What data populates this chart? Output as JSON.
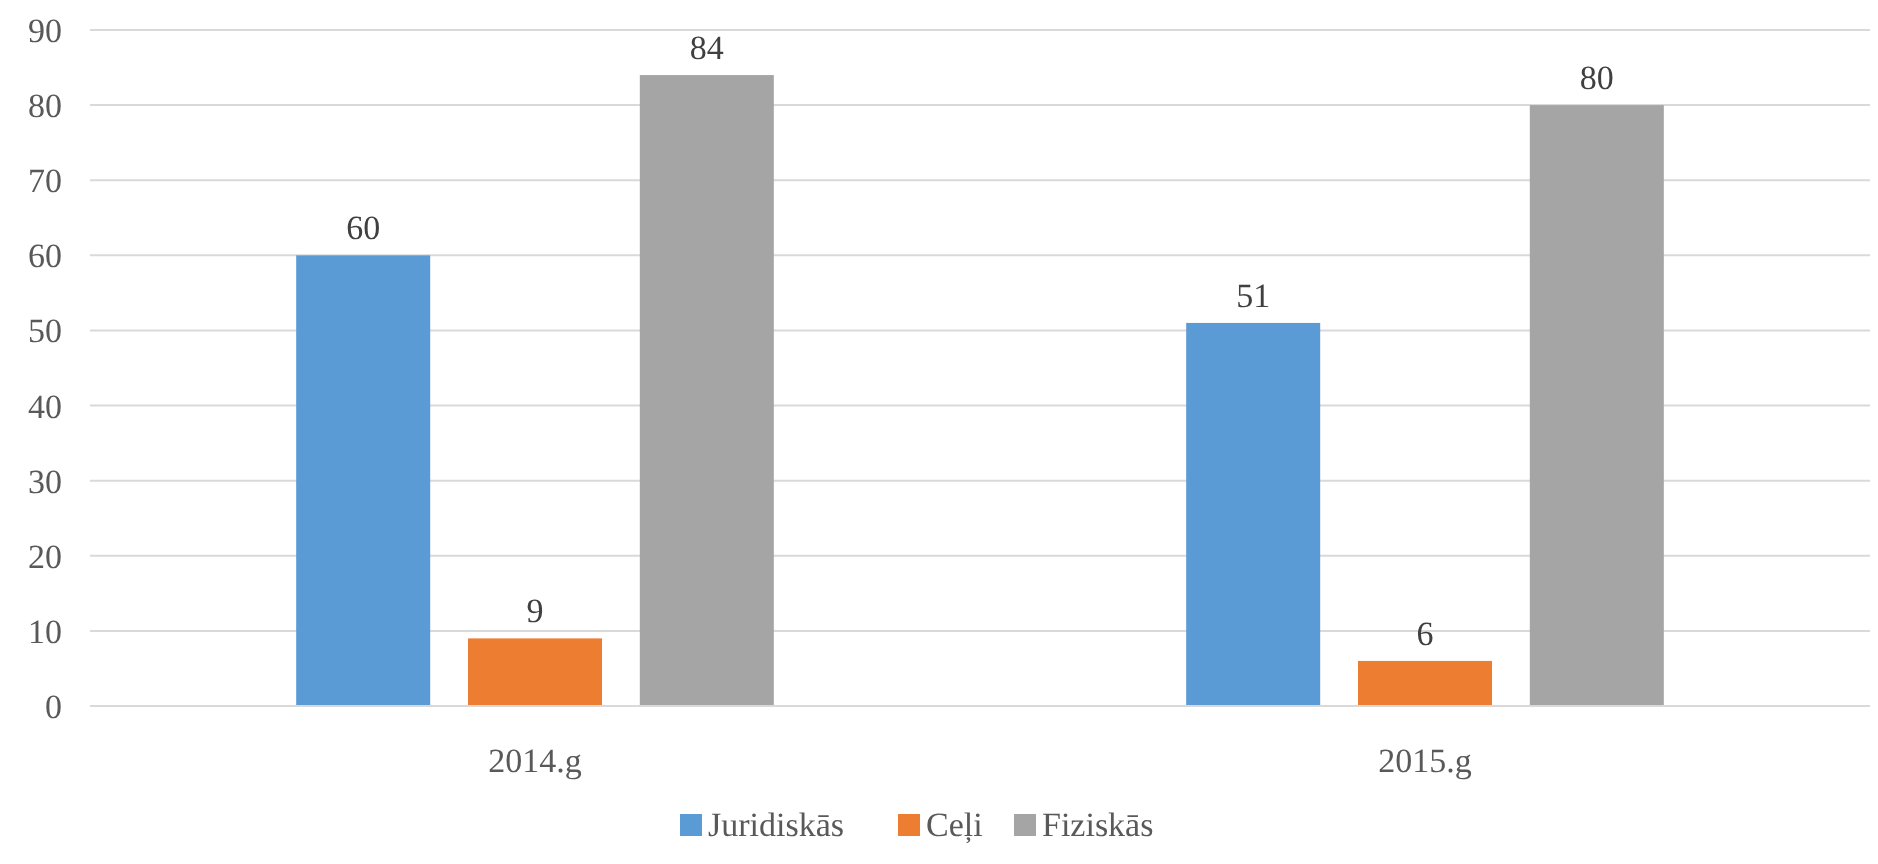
{
  "chart_data": {
    "type": "bar",
    "categories": [
      "2014.g",
      "2015.g"
    ],
    "series": [
      {
        "name": "Juridiskās",
        "color": "#5b9bd5",
        "values": [
          60,
          51
        ]
      },
      {
        "name": "Ceļi",
        "color": "#ed7d31",
        "values": [
          9,
          6
        ]
      },
      {
        "name": "Fiziskās",
        "color": "#a5a5a5",
        "values": [
          84,
          80
        ]
      }
    ],
    "ylim": [
      0,
      90
    ],
    "yticks": [
      0,
      10,
      20,
      30,
      40,
      50,
      60,
      70,
      80,
      90
    ],
    "grid": "y",
    "legend": "bottom",
    "data_labels": true
  }
}
